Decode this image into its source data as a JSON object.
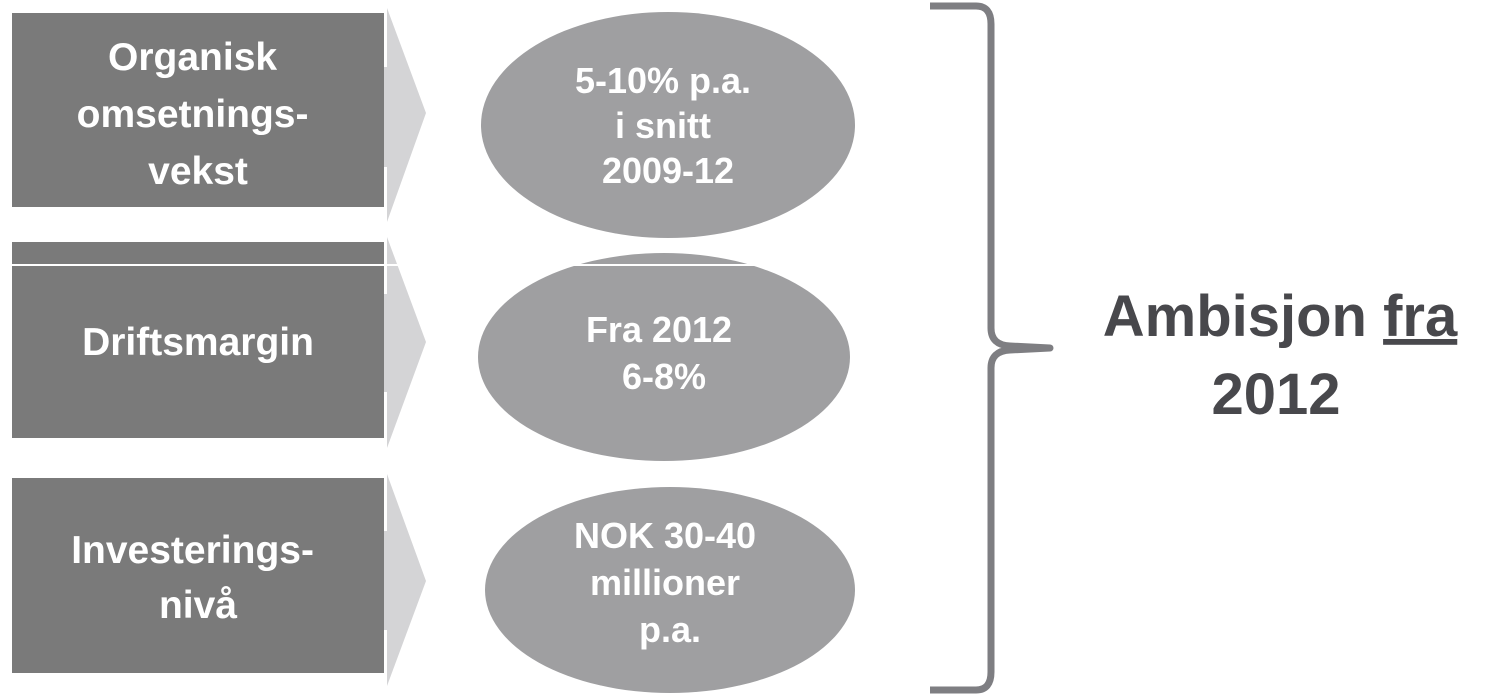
{
  "colors": {
    "box_fill": "#7a7a7a",
    "arrow_fill": "#d4d4d6",
    "ellipse_fill": "#9f9fa1",
    "brace_stroke": "#7e7e82",
    "ambition_text": "#48484c",
    "label_text": "#ffffff"
  },
  "rows": [
    {
      "label_lines": [
        "Organisk",
        "omsetnings-",
        "vekst"
      ],
      "target_lines": [
        "5-10% p.a.",
        "i snitt",
        "2009-12"
      ]
    },
    {
      "label_lines": [
        "Driftsmargin"
      ],
      "target_lines": [
        "Fra 2012",
        "6-8%"
      ]
    },
    {
      "label_lines": [
        "Investerings-",
        "nivå"
      ],
      "target_lines": [
        "NOK 30-40",
        "millioner",
        "p.a."
      ]
    }
  ],
  "ambition": {
    "line1_prefix": "Ambisjon ",
    "line1_underlined": "fra",
    "line2": "2012"
  }
}
